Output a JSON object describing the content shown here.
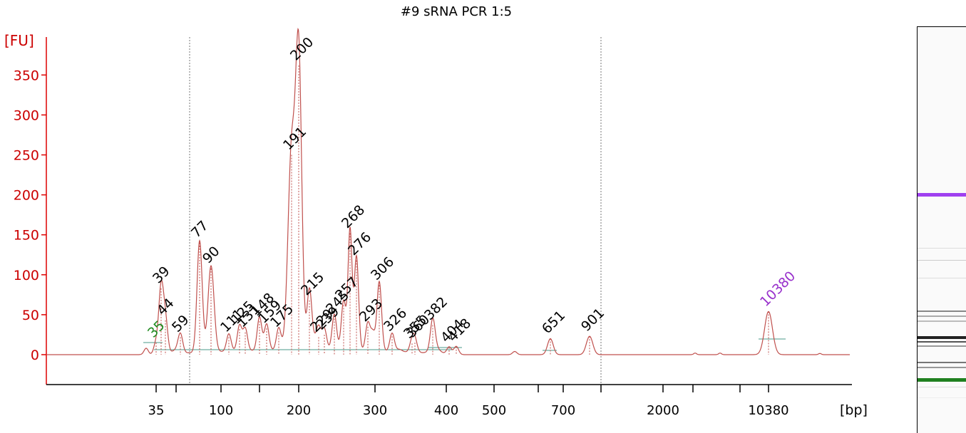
{
  "chart_data": {
    "type": "line",
    "title": "#9 sRNA PCR 1:5",
    "ylabel": "[FU]",
    "xlabel": "[bp]",
    "ylim": [
      -35,
      395
    ],
    "yticks": [
      0,
      50,
      100,
      150,
      200,
      250,
      300,
      350
    ],
    "x_tick_labels": [
      "35",
      "100",
      "200",
      "300",
      "400",
      "500",
      "700",
      "2000",
      "10380"
    ],
    "grid": false,
    "colors": {
      "trace": "#c0504d",
      "axis_y": "#dd0000",
      "lower_marker": "#228b22",
      "upper_marker": "#9932cc",
      "baseline": "#4a9a8a"
    },
    "peaks": [
      {
        "label": "35",
        "fu": 15,
        "color": "#228b22"
      },
      {
        "label": "39",
        "fu": 83,
        "color": "#000000"
      },
      {
        "label": "44",
        "fu": 43,
        "color": "#000000"
      },
      {
        "label": "59",
        "fu": 22,
        "color": "#000000"
      },
      {
        "label": "77",
        "fu": 140,
        "color": "#000000"
      },
      {
        "label": "90",
        "fu": 108,
        "color": "#000000"
      },
      {
        "label": "111",
        "fu": 22,
        "color": "#000000"
      },
      {
        "label": "125",
        "fu": 32,
        "color": "#000000"
      },
      {
        "label": "131",
        "fu": 28,
        "color": "#000000"
      },
      {
        "label": "148",
        "fu": 42,
        "color": "#000000"
      },
      {
        "label": "159",
        "fu": 33,
        "color": "#000000"
      },
      {
        "label": "175",
        "fu": 28,
        "color": "#000000"
      },
      {
        "label": "191",
        "fu": 250,
        "color": "#000000"
      },
      {
        "label": "200",
        "fu": 362,
        "color": "#000000"
      },
      {
        "label": "215",
        "fu": 68,
        "color": "#000000"
      },
      {
        "label": "229",
        "fu": 22,
        "color": "#000000"
      },
      {
        "label": "239",
        "fu": 25,
        "color": "#000000"
      },
      {
        "label": "245",
        "fu": 45,
        "color": "#000000"
      },
      {
        "label": "257",
        "fu": 62,
        "color": "#000000"
      },
      {
        "label": "268",
        "fu": 152,
        "color": "#000000"
      },
      {
        "label": "276",
        "fu": 118,
        "color": "#000000"
      },
      {
        "label": "293",
        "fu": 35,
        "color": "#000000"
      },
      {
        "label": "306",
        "fu": 87,
        "color": "#000000"
      },
      {
        "label": "326",
        "fu": 23,
        "color": "#000000"
      },
      {
        "label": "355",
        "fu": 14,
        "color": "#000000"
      },
      {
        "label": "360",
        "fu": 15,
        "color": "#000000"
      },
      {
        "label": "382",
        "fu": 37,
        "color": "#000000"
      },
      {
        "label": "404",
        "fu": 9,
        "color": "#000000"
      },
      {
        "label": "418",
        "fu": 10,
        "color": "#000000"
      },
      {
        "label": "651",
        "fu": 20,
        "color": "#000000"
      },
      {
        "label": "901",
        "fu": 23,
        "color": "#000000"
      },
      {
        "label": "10380",
        "fu": 54,
        "color": "#9932cc"
      }
    ]
  },
  "gel_lane": {
    "marker_colors": {
      "upper": "#a040f0",
      "lower": "#208020"
    }
  }
}
